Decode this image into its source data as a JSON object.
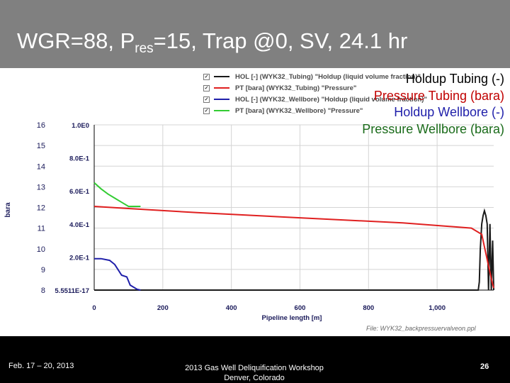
{
  "slide": {
    "title_prefix": "WGR=88, P",
    "title_sub": "res",
    "title_suffix": "=15, Trap @0, SV, 24.1 hr"
  },
  "overlay_labels": [
    {
      "text": "Holdup Tubing (-)",
      "color": "#000000"
    },
    {
      "text": "Pressure Tubing (bara)",
      "color": "#c00000"
    },
    {
      "text": "Holdup Wellbore (-)",
      "color": "#1f1faa"
    },
    {
      "text": "Pressure Wellbore (bara)",
      "color": "#1a6b1a"
    }
  ],
  "file_note": "File: WYK32_backpressuervalveon.ppl",
  "footer": {
    "date": "Feb. 17 – 20, 2013",
    "event_line1": "2013 Gas Well Deliquification Workshop",
    "event_line2": "Denver, Colorado",
    "page_number": "26"
  },
  "chart_data": {
    "type": "line",
    "xlabel": "Pipeline length [m]",
    "ylabel_left": "bara",
    "xlim": [
      0,
      1165
    ],
    "x_ticks": [
      {
        "value": 0,
        "label": "0"
      },
      {
        "value": 200,
        "label": "200"
      },
      {
        "value": 400,
        "label": "400"
      },
      {
        "value": 600,
        "label": "600"
      },
      {
        "value": 800,
        "label": "800"
      },
      {
        "value": 1000,
        "label": "1,000"
      }
    ],
    "y_left": {
      "lim": [
        8,
        16
      ],
      "ticks": [
        8,
        9,
        10,
        11,
        12,
        13,
        14,
        15,
        16
      ]
    },
    "y_right": {
      "lim": [
        0,
        1
      ],
      "ticks": [
        {
          "value": 0,
          "label": "5.5511E-17"
        },
        {
          "value": 0.2,
          "label": "2.0E-1"
        },
        {
          "value": 0.4,
          "label": "4.0E-1"
        },
        {
          "value": 0.6,
          "label": "6.0E-1"
        },
        {
          "value": 0.8,
          "label": "8.0E-1"
        },
        {
          "value": 1.0,
          "label": "1.0E0"
        }
      ]
    },
    "legend": [
      {
        "label": "HOL [-] (WYK32_Tubing) \"Holdup (liquid volume fraction)\"",
        "color": "#1a1a1a",
        "checked": "✓"
      },
      {
        "label": "PT [bara] (WYK32_Tubing) \"Pressure\"",
        "color": "#e02020",
        "checked": "✓"
      },
      {
        "label": "HOL [-] (WYK32_Wellbore) \"Holdup (liquid volume fraction)\"",
        "color": "#1f1faa",
        "checked": "✓"
      },
      {
        "label": "PT [bara] (WYK32_Wellbore) \"Pressure\"",
        "color": "#33cc33",
        "checked": "✓"
      }
    ],
    "series": [
      {
        "name": "HOL [-] (WYK32_Tubing)",
        "axis": "right",
        "color": "#1a1a1a",
        "x": [
          0,
          1120,
          1123,
          1126,
          1130,
          1134,
          1138,
          1142,
          1146,
          1150,
          1154,
          1158,
          1162,
          1165
        ],
        "y": [
          0.0,
          0.0,
          0.05,
          0.25,
          0.4,
          0.45,
          0.48,
          0.45,
          0.4,
          0.0,
          0.4,
          0.0,
          0.3,
          0.0
        ]
      },
      {
        "name": "PT [bara] (WYK32_Tubing)",
        "axis": "left",
        "color": "#e02020",
        "x": [
          0,
          100,
          300,
          600,
          900,
          1100,
          1130,
          1160,
          1165
        ],
        "y": [
          12.05,
          11.95,
          11.75,
          11.5,
          11.25,
          11.0,
          10.7,
          8.4,
          8.1
        ]
      },
      {
        "name": "HOL [-] (WYK32_Wellbore)",
        "axis": "right",
        "color": "#1f1faa",
        "x": [
          0,
          20,
          45,
          60,
          80,
          95,
          105,
          125,
          135
        ],
        "y": [
          0.19,
          0.19,
          0.18,
          0.155,
          0.09,
          0.08,
          0.03,
          0.005,
          0.0
        ]
      },
      {
        "name": "PT [bara] (WYK32_Wellbore)",
        "axis": "left",
        "color": "#33cc33",
        "x": [
          0,
          20,
          40,
          60,
          80,
          100,
          135
        ],
        "y": [
          13.2,
          12.9,
          12.65,
          12.45,
          12.25,
          12.05,
          12.05
        ]
      }
    ]
  }
}
